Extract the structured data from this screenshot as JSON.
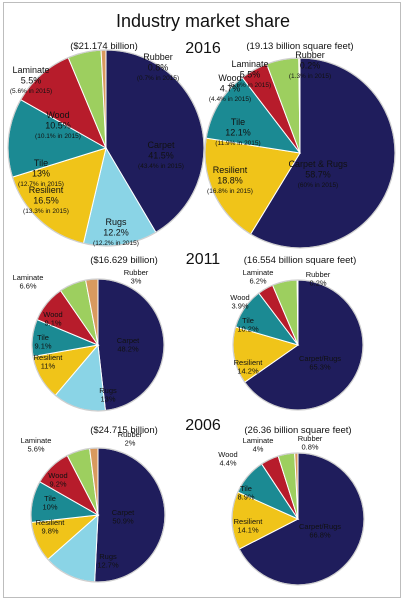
{
  "title": "Industry market share",
  "colors": {
    "carpet": "#1f1d5c",
    "rugs": "#8ad4e6",
    "resilient": "#f0c419",
    "tile": "#1b8a93",
    "wood": "#b71c2b",
    "laminate": "#9dcf5f",
    "rubber": "#d99a5f"
  },
  "chart_data": [
    {
      "type": "pie",
      "year": "2016",
      "subtitle": "($21.174 billion)",
      "slices": [
        {
          "key": "carpet",
          "name": "Carpet",
          "value": 41.5,
          "text": "41.5%",
          "prior": "(43.4% in 2015)"
        },
        {
          "key": "rugs",
          "name": "Rugs",
          "value": 12.2,
          "text": "12.2%",
          "prior": "(12.2% in 2015)"
        },
        {
          "key": "resilient",
          "name": "Resilient",
          "value": 16.5,
          "text": "16.5%",
          "prior": "(13.3% in 2015)"
        },
        {
          "key": "tile",
          "name": "Tile",
          "value": 13,
          "text": "13%",
          "prior": "(12.7% in 2015)"
        },
        {
          "key": "wood",
          "name": "Wood",
          "value": 10.5,
          "text": "10.5%",
          "prior": "(10.1% in 2015)"
        },
        {
          "key": "laminate",
          "name": "Laminate",
          "value": 5.5,
          "text": "5.5%",
          "prior": "(5.6% in 2015)"
        },
        {
          "key": "rubber",
          "name": "Rubber",
          "value": 0.8,
          "text": "0.8%",
          "prior": "(0.7% in 2015)"
        }
      ]
    },
    {
      "type": "pie",
      "year": "2016",
      "subtitle": "(19.13 billion square feet)",
      "slices": [
        {
          "key": "carpet",
          "name": "Carpet & Rugs",
          "value": 58.7,
          "text": "58.7%",
          "prior": "(60% in 2015)"
        },
        {
          "key": "resilient",
          "name": "Resilient",
          "value": 18.8,
          "text": "18.8%",
          "prior": "(16.8% in 2015)"
        },
        {
          "key": "tile",
          "name": "Tile",
          "value": 12.1,
          "text": "12.1%",
          "prior": "(11.9% in 2015)"
        },
        {
          "key": "wood",
          "name": "Wood",
          "value": 4.7,
          "text": "4.7%",
          "prior": "(4.4% in 2015)"
        },
        {
          "key": "laminate",
          "name": "Laminate",
          "value": 5.5,
          "text": "5.5%",
          "prior": "(5.6% in 2015)"
        },
        {
          "key": "rubber",
          "name": "Rubber",
          "value": 0.2,
          "text": "0.2%",
          "prior": "(1.3% in 2015)"
        }
      ]
    },
    {
      "type": "pie",
      "year": "2011",
      "subtitle": "($16.629 billion)",
      "slices": [
        {
          "key": "carpet",
          "name": "Carpet",
          "value": 48.2,
          "text": "48.2%"
        },
        {
          "key": "rugs",
          "name": "Rugs",
          "value": 13,
          "text": "13%"
        },
        {
          "key": "resilient",
          "name": "Resilient",
          "value": 11,
          "text": "11%"
        },
        {
          "key": "tile",
          "name": "Tile",
          "value": 9.1,
          "text": "9.1%"
        },
        {
          "key": "wood",
          "name": "Wood",
          "value": 9.1,
          "text": "9.1%"
        },
        {
          "key": "laminate",
          "name": "Laminate",
          "value": 6.6,
          "text": "6.6%"
        },
        {
          "key": "rubber",
          "name": "Rubber",
          "value": 3,
          "text": "3%"
        }
      ]
    },
    {
      "type": "pie",
      "year": "2011",
      "subtitle": "(16.554 billion square feet)",
      "slices": [
        {
          "key": "carpet",
          "name": "Carpet/Rugs",
          "value": 65.3,
          "text": "65.3%"
        },
        {
          "key": "resilient",
          "name": "Resilient",
          "value": 14.2,
          "text": "14.2%"
        },
        {
          "key": "tile",
          "name": "Tile",
          "value": 10.2,
          "text": "10.2%"
        },
        {
          "key": "wood",
          "name": "Wood",
          "value": 3.9,
          "text": "3.9%"
        },
        {
          "key": "laminate",
          "name": "Laminate",
          "value": 6.2,
          "text": "6.2%"
        },
        {
          "key": "rubber",
          "name": "Rubber",
          "value": 0.2,
          "text": "0.2%"
        }
      ]
    },
    {
      "type": "pie",
      "year": "2006",
      "subtitle": "($24.715 billion)",
      "slices": [
        {
          "key": "carpet",
          "name": "Carpet",
          "value": 50.9,
          "text": "50.9%"
        },
        {
          "key": "rugs",
          "name": "Rugs",
          "value": 12.7,
          "text": "12.7%"
        },
        {
          "key": "resilient",
          "name": "Resilient",
          "value": 9.8,
          "text": "9.8%"
        },
        {
          "key": "tile",
          "name": "Tile",
          "value": 10,
          "text": "10%"
        },
        {
          "key": "wood",
          "name": "Wood",
          "value": 9.2,
          "text": "9.2%"
        },
        {
          "key": "laminate",
          "name": "Laminate",
          "value": 5.6,
          "text": "5.6%"
        },
        {
          "key": "rubber",
          "name": "Rubber",
          "value": 2,
          "text": "2%"
        }
      ]
    },
    {
      "type": "pie",
      "year": "2006",
      "subtitle": "(26.36 billion square feet)",
      "slices": [
        {
          "key": "carpet",
          "name": "Carpet/Rugs",
          "value": 66.8,
          "text": "66.8%"
        },
        {
          "key": "resilient",
          "name": "Resilient",
          "value": 14.1,
          "text": "14.1%"
        },
        {
          "key": "tile",
          "name": "Tile",
          "value": 8.9,
          "text": "8.9%"
        },
        {
          "key": "wood",
          "name": "Wood",
          "value": 4.4,
          "text": "4.4%"
        },
        {
          "key": "laminate",
          "name": "Laminate",
          "value": 4,
          "text": "4%"
        },
        {
          "key": "rubber",
          "name": "Rubber",
          "value": 0.8,
          "text": "0.8%"
        }
      ]
    }
  ]
}
